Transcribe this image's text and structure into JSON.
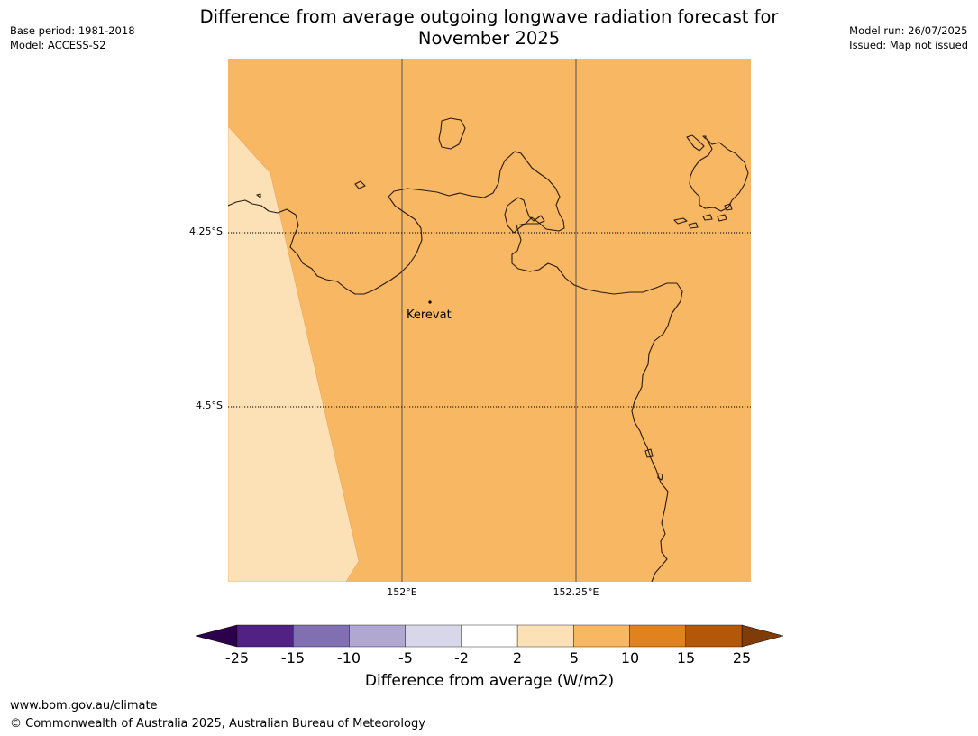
{
  "title_line1": "Difference from average outgoing longwave radiation forecast for",
  "title_line2": "November 2025",
  "meta_left": {
    "base_period": "Base period: 1981-2018",
    "model": "Model: ACCESS-S2"
  },
  "meta_right": {
    "model_run": "Model run: 26/07/2025",
    "issued": "Issued: Map not issued"
  },
  "map": {
    "latitude_labels": [
      "4.25°S",
      "4.5°S"
    ],
    "longitude_labels": [
      "152°E",
      "152.25°E"
    ],
    "place": "Kerevat",
    "fill_colors": {
      "main": "#f8b762",
      "west": "#fce0b6",
      "coastline": "#2a1a10",
      "gridline": "#000000"
    }
  },
  "colorbar": {
    "label": "Difference from average (W/m2)",
    "ticks": [
      "-25",
      "-15",
      "-10",
      "-5",
      "-2",
      "2",
      "5",
      "10",
      "15",
      "25"
    ],
    "colors": [
      "#512283",
      "#8070b1",
      "#b1a8d1",
      "#d7d7e9",
      "#ffffff",
      "#fce0b6",
      "#f8b762",
      "#e0821d",
      "#b35808"
    ],
    "extend_low_color": "#2d004b",
    "extend_high_color": "#7f3b08"
  },
  "footer": {
    "url": "www.bom.gov.au/climate",
    "copyright": "© Commonwealth of Australia 2025, Australian Bureau of Meteorology"
  }
}
